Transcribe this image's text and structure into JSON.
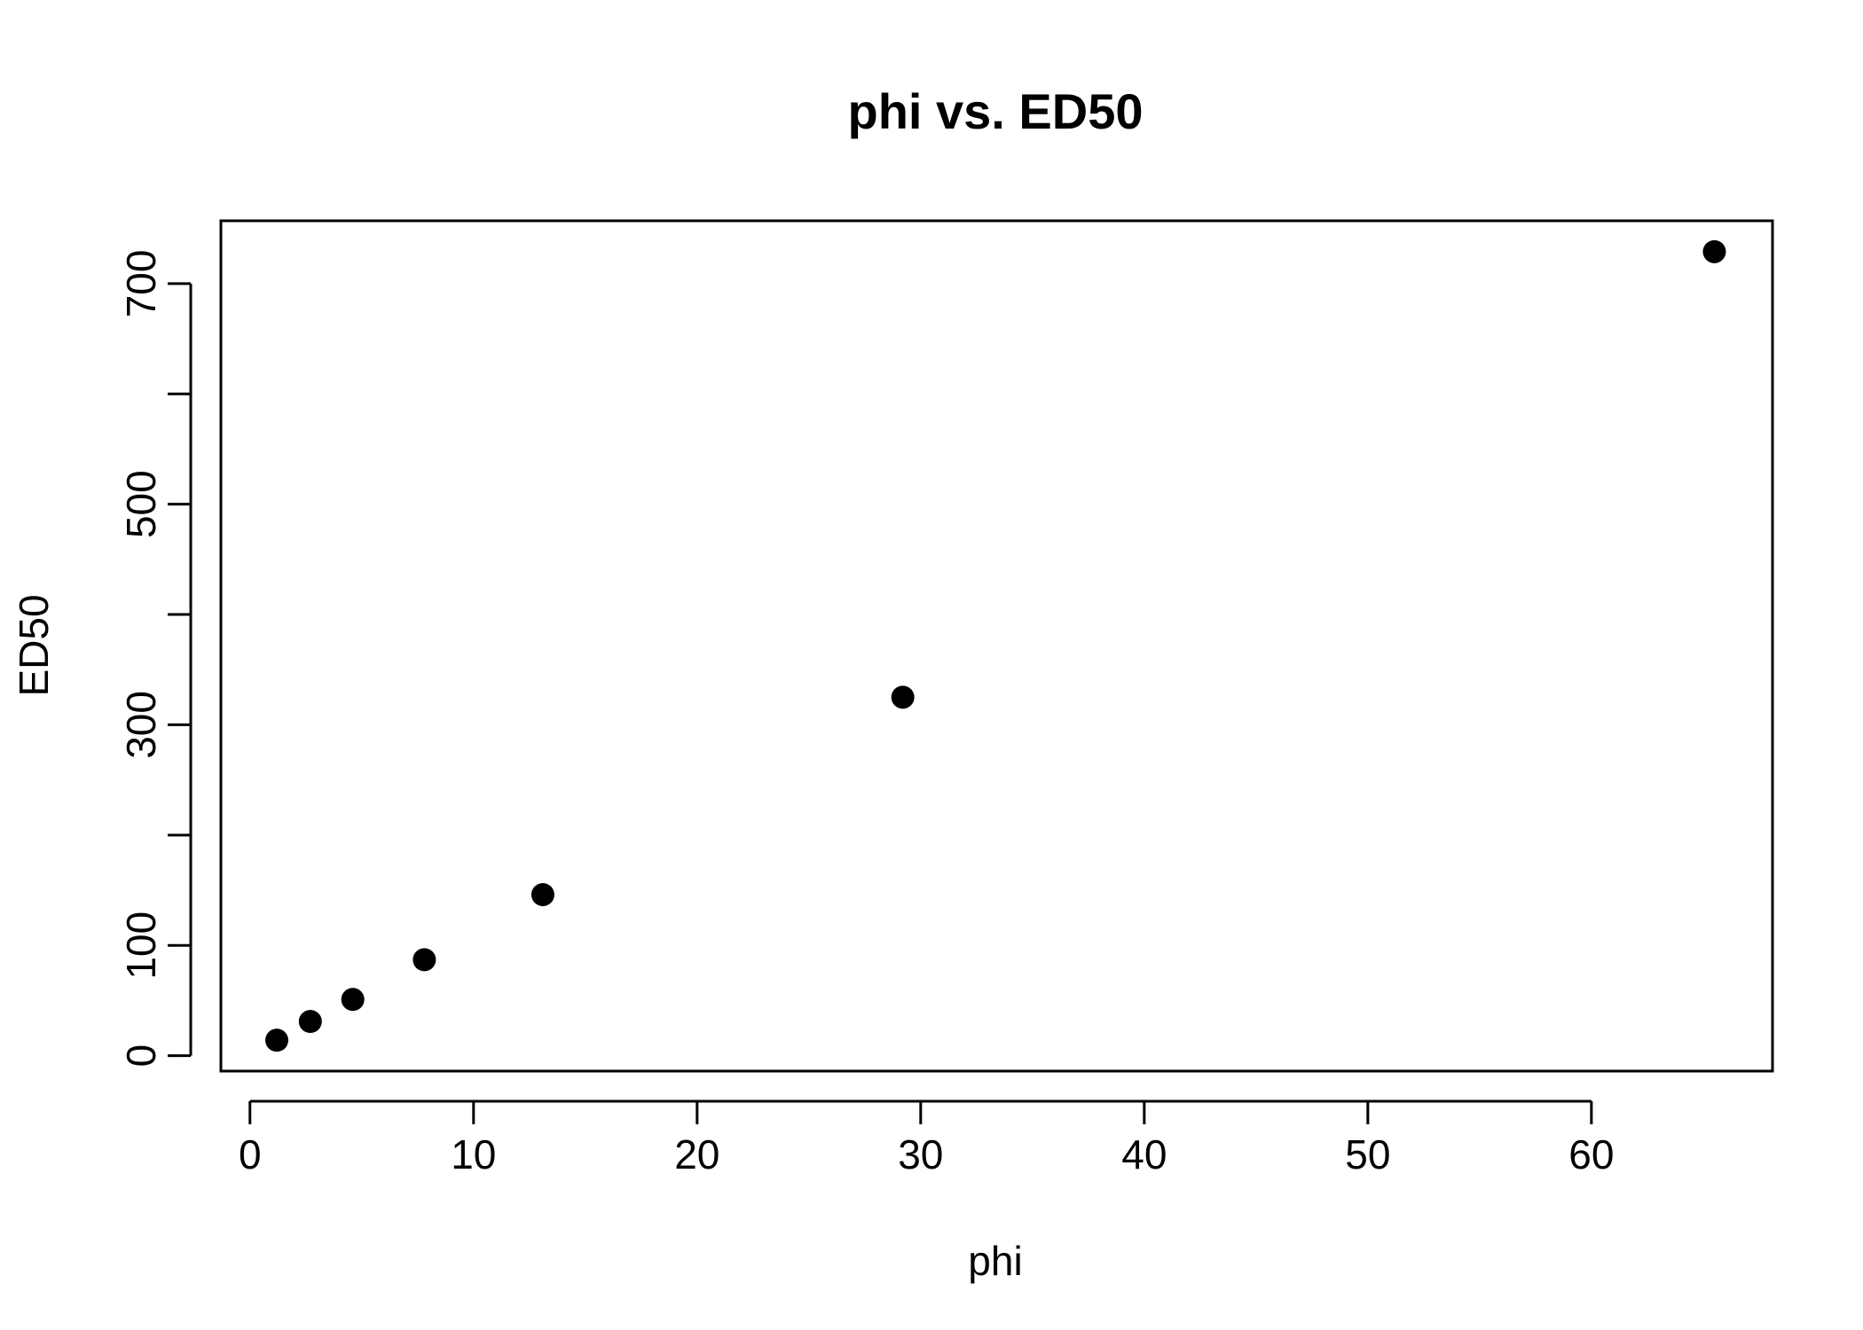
{
  "chart_data": {
    "type": "scatter",
    "title": "phi vs. ED50",
    "xlabel": "phi",
    "ylabel": "ED50",
    "xlim": [
      -1.3,
      68.1
    ],
    "ylim": [
      -14,
      757
    ],
    "x_ticks": [
      0,
      10,
      20,
      30,
      40,
      50,
      60
    ],
    "x_tick_labels": [
      "0",
      "10",
      "20",
      "30",
      "40",
      "50",
      "60"
    ],
    "y_ticks": [
      0,
      100,
      200,
      300,
      400,
      500,
      600,
      700
    ],
    "y_tick_labels": [
      "0",
      "100",
      "",
      "300",
      "",
      "500",
      "",
      "700"
    ],
    "grid": false,
    "legend": "none",
    "point_color": "#000000",
    "series": [
      {
        "x": [
          1.2,
          2.7,
          4.6,
          7.8,
          13.1,
          29.2,
          65.5
        ],
        "y": [
          14,
          31,
          51,
          87,
          146,
          325,
          729
        ]
      }
    ]
  }
}
